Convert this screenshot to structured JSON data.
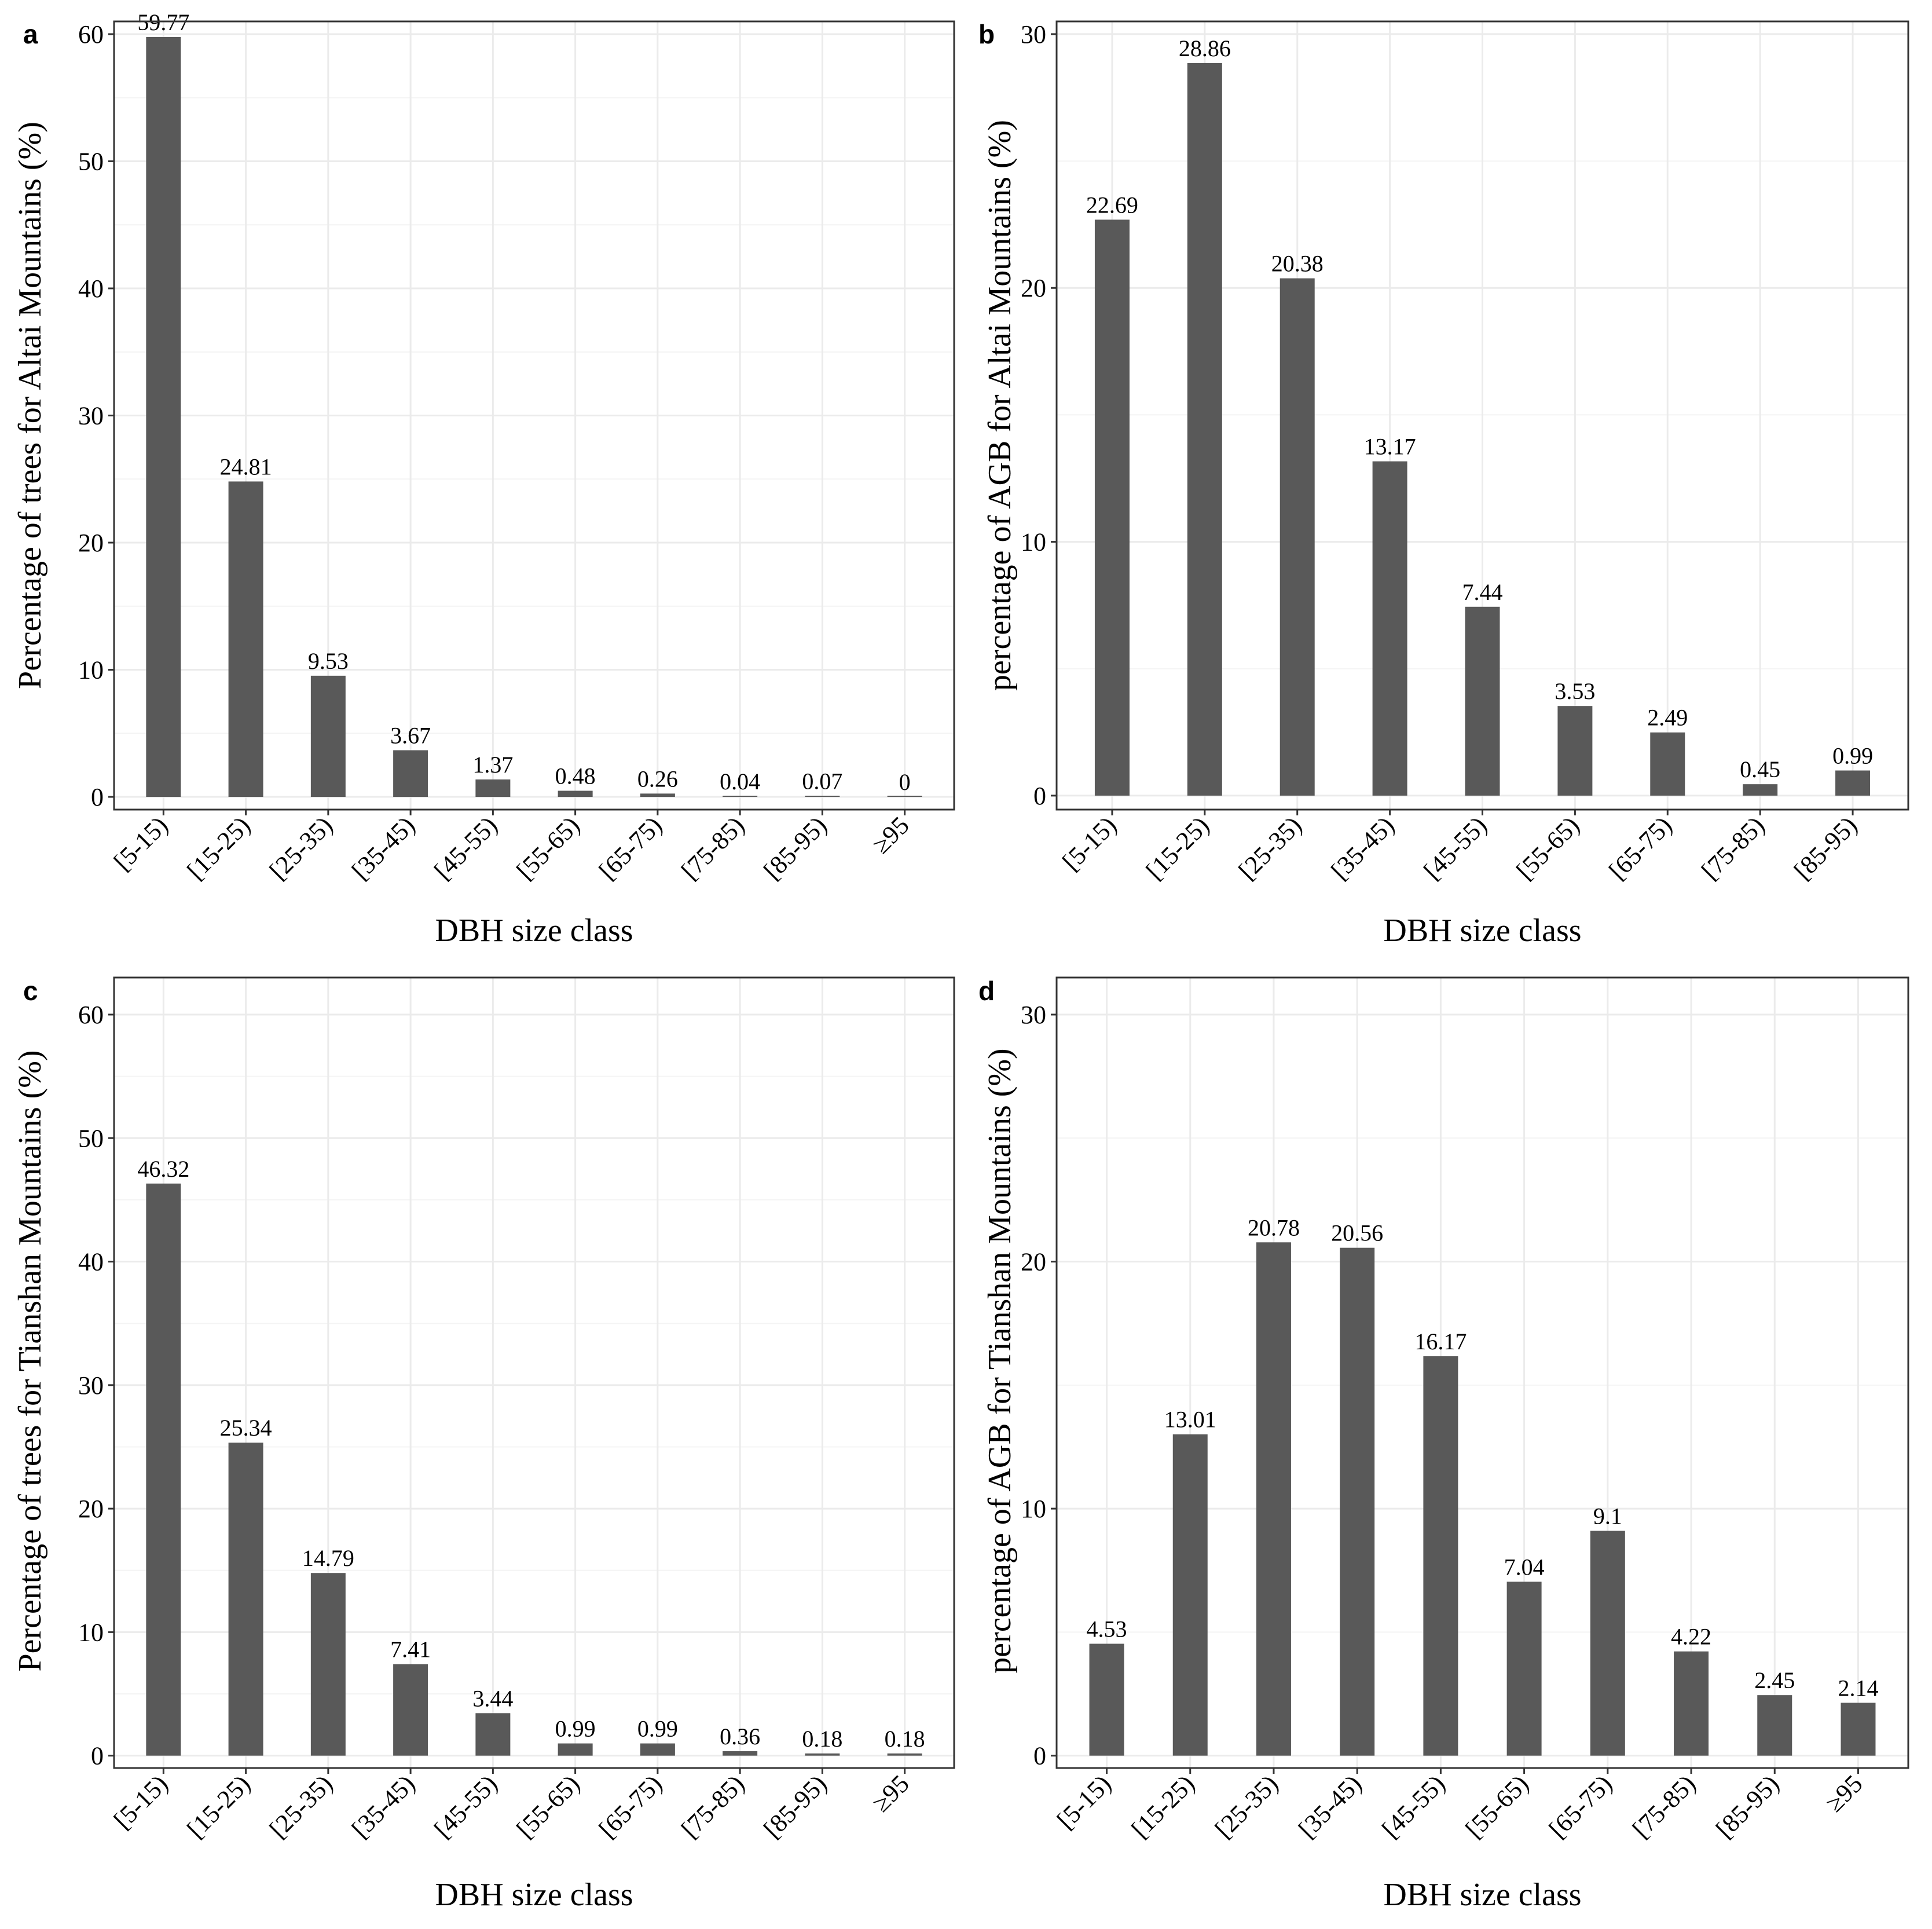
{
  "colors": {
    "bar": "#595959",
    "grid_major": "#ebebeb",
    "grid_minor": "#f4f4f4",
    "panel_border": "#333333",
    "text": "#000000",
    "background": "#ffffff"
  },
  "chart_data": [
    {
      "panel": "a",
      "type": "bar",
      "xlabel": "DBH size class",
      "ylabel": "Percentage of trees for Altai Mountains (%)",
      "categories": [
        "[5-15)",
        "[15-25)",
        "[25-35)",
        "[35-45)",
        "[45-55)",
        "[55-65)",
        "[65-75)",
        "[75-85)",
        "[85-95)",
        "≥95"
      ],
      "values": [
        59.77,
        24.81,
        9.53,
        3.67,
        1.37,
        0.48,
        0.26,
        0.04,
        0.07,
        0
      ],
      "value_labels": [
        "59.77",
        "24.81",
        "9.53",
        "3.67",
        "1.37",
        "0.48",
        "0.26",
        "0.04",
        "0.07",
        "0"
      ],
      "ylim": [
        -1,
        61
      ],
      "yticks": [
        0,
        10,
        20,
        30,
        40,
        50,
        60
      ],
      "ytick_labels": [
        "0",
        "10",
        "20",
        "30",
        "40",
        "50",
        "60"
      ],
      "grid": true
    },
    {
      "panel": "b",
      "type": "bar",
      "xlabel": "DBH size class",
      "ylabel": "percentage of AGB for Altai Mountains (%)",
      "categories": [
        "[5-15)",
        "[15-25)",
        "[25-35)",
        "[35-45)",
        "[45-55)",
        "[55-65)",
        "[65-75)",
        "[75-85)",
        "[85-95)"
      ],
      "values": [
        22.69,
        28.86,
        20.38,
        13.17,
        7.44,
        3.53,
        2.49,
        0.45,
        0.99
      ],
      "value_labels": [
        "22.69",
        "28.86",
        "20.38",
        "13.17",
        "7.44",
        "3.53",
        "2.49",
        "0.45",
        "0.99"
      ],
      "ylim": [
        -0.55,
        30.5
      ],
      "yticks": [
        0,
        10,
        20,
        30
      ],
      "ytick_labels": [
        "0",
        "10",
        "20",
        "30"
      ],
      "grid": true
    },
    {
      "panel": "c",
      "type": "bar",
      "xlabel": "DBH size class",
      "ylabel": "Percentage of trees for Tianshan Mountains (%)",
      "categories": [
        "[5-15)",
        "[15-25)",
        "[25-35)",
        "[35-45)",
        "[45-55)",
        "[55-65)",
        "[65-75)",
        "[75-85)",
        "[85-95)",
        "≥95"
      ],
      "values": [
        46.32,
        25.34,
        14.79,
        7.41,
        3.44,
        0.99,
        0.99,
        0.36,
        0.18,
        0.18
      ],
      "value_labels": [
        "46.32",
        "25.34",
        "14.79",
        "7.41",
        "3.44",
        "0.99",
        "0.99",
        "0.36",
        "0.18",
        "0.18"
      ],
      "ylim": [
        -1,
        63
      ],
      "yticks": [
        0,
        10,
        20,
        30,
        40,
        50,
        60
      ],
      "ytick_labels": [
        "0",
        "10",
        "20",
        "30",
        "40",
        "50",
        "60"
      ],
      "grid": true
    },
    {
      "panel": "d",
      "type": "bar",
      "xlabel": "DBH size class",
      "ylabel": "percentage of AGB for Tianshan Mountains (%)",
      "categories": [
        "[5-15)",
        "[15-25)",
        "[25-35)",
        "[35-45)",
        "[45-55)",
        "[55-65)",
        "[65-75)",
        "[75-85)",
        "[85-95)",
        "≥95"
      ],
      "values": [
        4.53,
        13.01,
        20.78,
        20.56,
        16.17,
        7.04,
        9.1,
        4.22,
        2.45,
        2.14
      ],
      "value_labels": [
        "4.53",
        "13.01",
        "20.78",
        "20.56",
        "16.17",
        "7.04",
        "9.1",
        "4.22",
        "2.45",
        "2.14"
      ],
      "ylim": [
        -0.5,
        31.5
      ],
      "yticks": [
        0,
        10,
        20,
        30
      ],
      "ytick_labels": [
        "0",
        "10",
        "20",
        "30"
      ],
      "grid": true
    }
  ]
}
